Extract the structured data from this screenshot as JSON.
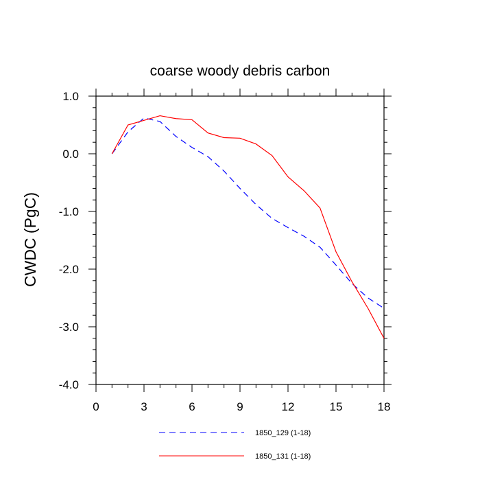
{
  "chart_data": {
    "type": "line",
    "title": "coarse woody debris carbon",
    "xlabel": "",
    "ylabel": "CWDC  (PgC)",
    "xlim": [
      0,
      18
    ],
    "ylim": [
      -4.0,
      1.0
    ],
    "xticks": [
      0,
      3,
      6,
      9,
      12,
      15,
      18
    ],
    "xtick_labels": [
      "0",
      "3",
      "6",
      "9",
      "12",
      "15",
      "18"
    ],
    "yticks": [
      1.0,
      0.0,
      -1.0,
      -2.0,
      -3.0,
      -4.0
    ],
    "ytick_labels": [
      "1.0",
      "0.0",
      "-1.0",
      "-2.0",
      "-3.0",
      "-4.0"
    ],
    "grid": false,
    "legend_position": "bottom",
    "series": [
      {
        "name": "1850_129 (1-18)",
        "color": "#0000ff",
        "style": "dashed",
        "x": [
          1,
          2,
          3,
          4,
          5,
          6,
          7,
          8,
          9,
          10,
          11,
          12,
          13,
          14,
          15,
          16,
          17,
          18
        ],
        "values": [
          0.0,
          0.38,
          0.62,
          0.56,
          0.3,
          0.11,
          -0.05,
          -0.3,
          -0.6,
          -0.88,
          -1.12,
          -1.28,
          -1.43,
          -1.62,
          -1.93,
          -2.25,
          -2.5,
          -2.68
        ]
      },
      {
        "name": "1850_131 (1-18)",
        "color": "#ff0000",
        "style": "solid",
        "x": [
          1,
          2,
          3,
          4,
          5,
          6,
          7,
          8,
          9,
          10,
          11,
          12,
          13,
          14,
          15,
          16,
          17,
          18
        ],
        "values": [
          0.0,
          0.5,
          0.58,
          0.66,
          0.61,
          0.59,
          0.36,
          0.28,
          0.27,
          0.17,
          -0.03,
          -0.4,
          -0.64,
          -0.94,
          -1.7,
          -2.22,
          -2.68,
          -3.2
        ]
      }
    ]
  }
}
